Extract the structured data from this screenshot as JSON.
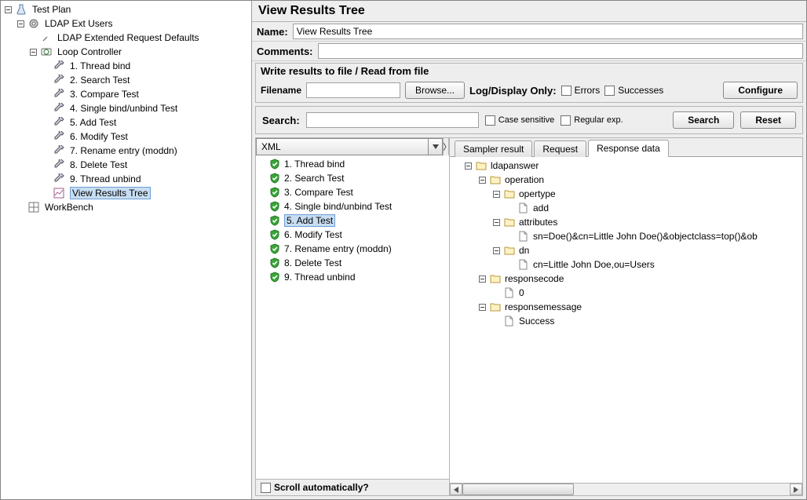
{
  "left_tree": {
    "root": {
      "label": "Test Plan",
      "children": [
        {
          "label": "LDAP Ext Users",
          "icon": "gear",
          "children": [
            {
              "label": "LDAP Extended Request Defaults",
              "icon": "wrench"
            },
            {
              "label": "Loop Controller",
              "icon": "loop",
              "children": [
                {
                  "label": "1. Thread bind",
                  "icon": "pipette"
                },
                {
                  "label": "2. Search Test",
                  "icon": "pipette"
                },
                {
                  "label": "3. Compare Test",
                  "icon": "pipette"
                },
                {
                  "label": "4. Single bind/unbind Test",
                  "icon": "pipette"
                },
                {
                  "label": "5. Add Test",
                  "icon": "pipette"
                },
                {
                  "label": "6. Modify Test",
                  "icon": "pipette"
                },
                {
                  "label": "7. Rename entry (moddn)",
                  "icon": "pipette"
                },
                {
                  "label": "8. Delete Test",
                  "icon": "pipette"
                },
                {
                  "label": "9. Thread unbind",
                  "icon": "pipette"
                },
                {
                  "label": "View Results Tree",
                  "icon": "graph",
                  "selected": true
                }
              ]
            }
          ]
        },
        {
          "label": "WorkBench",
          "icon": "workbench"
        }
      ]
    }
  },
  "title": "View Results Tree",
  "name_field": {
    "label": "Name:",
    "value": "View Results Tree"
  },
  "comments_field": {
    "label": "Comments:",
    "value": ""
  },
  "file_section": {
    "title": "Write results to file / Read from file",
    "filename_label": "Filename",
    "filename_value": "",
    "browse_label": "Browse...",
    "logdisplay_label": "Log/Display Only:",
    "errors_label": "Errors",
    "successes_label": "Successes",
    "configure_label": "Configure"
  },
  "search_section": {
    "label": "Search:",
    "value": "",
    "case_sensitive_label": "Case sensitive",
    "regex_label": "Regular exp.",
    "search_btn": "Search",
    "reset_btn": "Reset"
  },
  "renderer_dropdown": "XML",
  "samplers": [
    {
      "label": "1. Thread bind",
      "status": "ok"
    },
    {
      "label": "2. Search Test",
      "status": "ok"
    },
    {
      "label": "3. Compare Test",
      "status": "ok"
    },
    {
      "label": "4. Single bind/unbind Test",
      "status": "ok"
    },
    {
      "label": "5. Add Test",
      "status": "ok",
      "selected": true
    },
    {
      "label": "6. Modify Test",
      "status": "ok"
    },
    {
      "label": "7. Rename entry (moddn)",
      "status": "ok"
    },
    {
      "label": "8. Delete Test",
      "status": "ok"
    },
    {
      "label": "9. Thread unbind",
      "status": "ok"
    }
  ],
  "scroll_auto_label": "Scroll automatically?",
  "tabs": {
    "sampler": "Sampler result",
    "request": "Request",
    "response": "Response data"
  },
  "response_tree": {
    "label": "ldapanswer",
    "children": [
      {
        "label": "operation",
        "children": [
          {
            "label": "opertype",
            "children": [
              {
                "label": "add",
                "leaf": true
              }
            ]
          },
          {
            "label": "attributes",
            "children": [
              {
                "label": "sn=Doe()&cn=Little John Doe()&objectclass=top()&ob",
                "leaf": true
              }
            ]
          },
          {
            "label": "dn",
            "children": [
              {
                "label": "cn=Little John Doe,ou=Users",
                "leaf": true
              }
            ]
          }
        ]
      },
      {
        "label": "responsecode",
        "children": [
          {
            "label": "0",
            "leaf": true
          }
        ]
      },
      {
        "label": "responsemessage",
        "children": [
          {
            "label": "Success",
            "leaf": true
          }
        ]
      }
    ]
  },
  "colors": {
    "panel_bg": "#eeeeee",
    "border": "#a0a0a0",
    "selection_bg": "#c8ddf2",
    "selection_border": "#6a9ed6",
    "ok_green": "#3aa53a"
  }
}
